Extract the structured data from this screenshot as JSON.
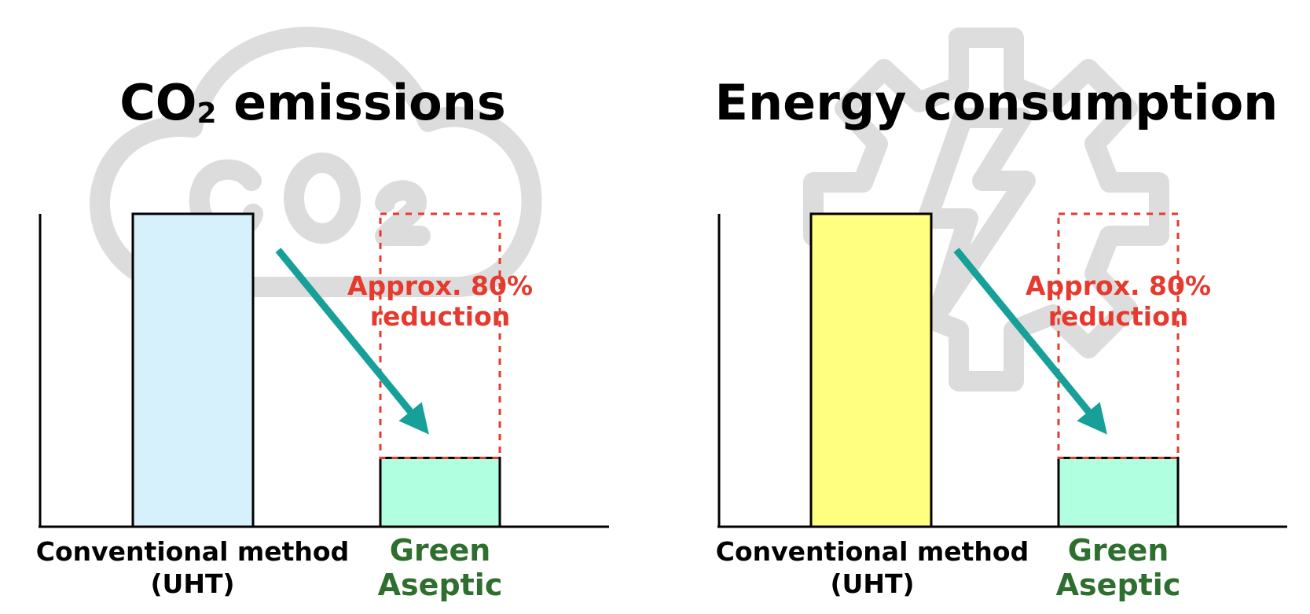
{
  "colors": {
    "axis": "#000000",
    "watermark": "#d9d9d9",
    "arrow": "#17a099",
    "annotation": "#e63a2e",
    "green_label": "#2e6e2e",
    "dashed_outline": "#e63a2e"
  },
  "chart_data": [
    {
      "type": "bar",
      "title_main": "CO",
      "title_sub": "2",
      "title_rest": " emissions",
      "watermark_icon": "cloud-co2-icon",
      "categories": [
        "Conventional method",
        "Green"
      ],
      "categories_line2": [
        "(UHT)",
        "Aseptic"
      ],
      "values": [
        100,
        22
      ],
      "bar_colors": [
        "#d6f0fc",
        "#b0ffe1"
      ],
      "reference_value": 100,
      "annotation_line1": "Approx. 80%",
      "annotation_line2": "reduction",
      "ylim": [
        0,
        100
      ]
    },
    {
      "type": "bar",
      "title_main": "Energy consumption",
      "title_sub": "",
      "title_rest": "",
      "watermark_icon": "gear-lightning-icon",
      "categories": [
        "Conventional method",
        "Green"
      ],
      "categories_line2": [
        "(UHT)",
        "Aseptic"
      ],
      "values": [
        100,
        22
      ],
      "bar_colors": [
        "#ffff80",
        "#b0ffe1"
      ],
      "reference_value": 100,
      "annotation_line1": "Approx. 80%",
      "annotation_line2": "reduction",
      "ylim": [
        0,
        100
      ]
    }
  ]
}
